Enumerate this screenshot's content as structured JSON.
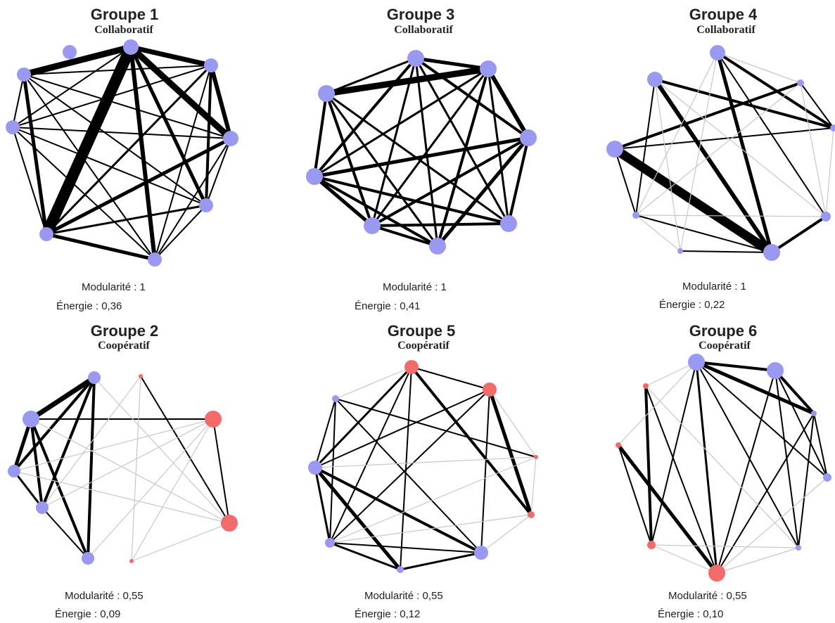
{
  "colors": {
    "blue_node": "#9999f2",
    "red_node": "#f26b6b",
    "edge": "#000000",
    "light_edge": "#c8c8c8"
  },
  "groups": [
    {
      "id": "g1",
      "title": "Groupe 1",
      "type": "Collaboratif",
      "modularity_label": "Modularité : 1",
      "energy_label": "Énergie : 0,36",
      "nodes": [
        {
          "c": "b",
          "r": 10
        },
        {
          "c": "b",
          "r": 11
        },
        {
          "c": "b",
          "r": 10
        },
        {
          "c": "b",
          "r": 11
        },
        {
          "c": "b",
          "r": 10
        },
        {
          "c": "b",
          "r": 10
        },
        {
          "c": "b",
          "r": 10
        },
        {
          "c": "b",
          "r": 10
        },
        {
          "c": "b",
          "r": 10
        }
      ],
      "edges": [
        [
          1,
          6,
          16
        ],
        [
          1,
          3,
          9
        ],
        [
          1,
          0,
          9
        ],
        [
          1,
          4,
          5
        ],
        [
          1,
          5,
          6
        ],
        [
          1,
          2,
          7
        ],
        [
          0,
          6,
          5
        ],
        [
          2,
          3,
          6
        ],
        [
          2,
          4,
          4
        ],
        [
          3,
          6,
          5
        ],
        [
          6,
          5,
          5
        ],
        [
          6,
          7,
          2
        ],
        [
          5,
          7,
          2
        ],
        [
          4,
          5,
          2
        ],
        [
          6,
          4,
          3
        ],
        [
          2,
          6,
          3
        ],
        [
          0,
          3,
          2
        ],
        [
          0,
          5,
          2
        ],
        [
          0,
          4,
          2
        ],
        [
          2,
          5,
          2
        ],
        [
          3,
          7,
          2
        ],
        [
          0,
          7,
          2
        ],
        [
          1,
          7,
          2
        ],
        [
          3,
          5,
          2
        ],
        [
          2,
          7,
          2
        ],
        [
          0,
          2,
          2
        ],
        [
          3,
          4,
          2
        ],
        [
          4,
          7,
          2
        ]
      ]
    },
    {
      "id": "g3",
      "title": "Groupe 3",
      "type": "Collaboratif",
      "modularity_label": "Modularité : 1",
      "energy_label": "Énergie : 0,41",
      "nodes": [
        {
          "c": "b",
          "r": 12
        },
        {
          "c": "b",
          "r": 12
        },
        {
          "c": "b",
          "r": 12
        },
        {
          "c": "b",
          "r": 12
        },
        {
          "c": "b",
          "r": 12
        },
        {
          "c": "b",
          "r": 12
        },
        {
          "c": "b",
          "r": 12
        },
        {
          "c": "b",
          "r": 12
        }
      ],
      "edges": [
        [
          1,
          7,
          9
        ],
        [
          1,
          2,
          6
        ],
        [
          0,
          1,
          5
        ],
        [
          2,
          5,
          4
        ],
        [
          2,
          6,
          5
        ],
        [
          5,
          6,
          5
        ],
        [
          2,
          4,
          5
        ],
        [
          1,
          4,
          4
        ],
        [
          0,
          2,
          4
        ],
        [
          3,
          5,
          4
        ],
        [
          4,
          5,
          4
        ],
        [
          4,
          6,
          4
        ],
        [
          3,
          6,
          4
        ],
        [
          2,
          3,
          4
        ],
        [
          0,
          6,
          4
        ],
        [
          5,
          7,
          4
        ],
        [
          6,
          7,
          4
        ],
        [
          0,
          7,
          3
        ],
        [
          1,
          6,
          3
        ],
        [
          0,
          3,
          3
        ],
        [
          1,
          3,
          3
        ],
        [
          3,
          7,
          3
        ],
        [
          0,
          5,
          3
        ],
        [
          4,
          7,
          3
        ],
        [
          0,
          4,
          3
        ],
        [
          1,
          5,
          3
        ]
      ]
    },
    {
      "id": "g4",
      "title": "Groupe 4",
      "type": "Collaboratif",
      "modularity_label": "Modularité : 1",
      "energy_label": "Énergie : 0,22",
      "nodes": [
        {
          "c": "b",
          "r": 11
        },
        {
          "c": "b",
          "r": 5
        },
        {
          "c": "b",
          "r": 5
        },
        {
          "c": "b",
          "r": 7
        },
        {
          "c": "b",
          "r": 12
        },
        {
          "c": "b",
          "r": 4
        },
        {
          "c": "b",
          "r": 5
        },
        {
          "c": "b",
          "r": 12
        },
        {
          "c": "b",
          "r": 11
        }
      ],
      "edges": [
        [
          7,
          4,
          13
        ],
        [
          8,
          4,
          6
        ],
        [
          0,
          4,
          5
        ],
        [
          4,
          7,
          3
        ],
        [
          7,
          1,
          4
        ],
        [
          0,
          2,
          4
        ],
        [
          8,
          2,
          4
        ],
        [
          4,
          3,
          4
        ],
        [
          4,
          5,
          2
        ],
        [
          4,
          6,
          2
        ],
        [
          0,
          1,
          1
        ],
        [
          0,
          3,
          2
        ],
        [
          7,
          2,
          2
        ],
        [
          1,
          3,
          1
        ],
        [
          1,
          2,
          2
        ],
        [
          2,
          3,
          1
        ],
        [
          1,
          6,
          1
        ],
        [
          0,
          6,
          1
        ],
        [
          0,
          5,
          1
        ],
        [
          8,
          6,
          2
        ],
        [
          8,
          5,
          1
        ],
        [
          8,
          3,
          1
        ],
        [
          7,
          6,
          2
        ],
        [
          5,
          6,
          1
        ],
        [
          3,
          6,
          1
        ]
      ]
    },
    {
      "id": "g2",
      "title": "Groupe 2",
      "type": "Coopératif",
      "modularity_label": "Modularité : 0,55",
      "energy_label": "Énergie : 0,09",
      "nodes": [
        {
          "c": "b",
          "r": 9
        },
        {
          "c": "r",
          "r": 3
        },
        {
          "c": "r",
          "r": 12
        },
        {
          "c": "r",
          "r": 12
        },
        {
          "c": "r",
          "r": 3
        },
        {
          "c": "b",
          "r": 9
        },
        {
          "c": "b",
          "r": 9
        },
        {
          "c": "b",
          "r": 9
        },
        {
          "c": "b",
          "r": 12
        }
      ],
      "edges": [
        [
          8,
          0,
          7
        ],
        [
          7,
          8,
          5
        ],
        [
          7,
          0,
          4
        ],
        [
          0,
          5,
          4
        ],
        [
          8,
          5,
          4
        ],
        [
          0,
          6,
          4
        ],
        [
          8,
          7,
          3
        ],
        [
          8,
          6,
          4
        ],
        [
          0,
          7,
          3
        ],
        [
          7,
          6,
          3
        ],
        [
          5,
          6,
          2
        ],
        [
          1,
          3,
          2
        ],
        [
          2,
          3,
          2
        ],
        [
          8,
          2,
          2
        ],
        [
          1,
          4,
          1
        ],
        [
          8,
          3,
          1
        ],
        [
          0,
          3,
          1
        ],
        [
          1,
          6,
          1
        ],
        [
          6,
          2,
          1
        ],
        [
          5,
          2,
          1
        ],
        [
          7,
          2,
          1
        ],
        [
          4,
          3,
          1
        ],
        [
          7,
          3,
          1
        ],
        [
          4,
          2,
          1
        ]
      ]
    },
    {
      "id": "g5",
      "title": "Groupe 5",
      "type": "Coopératif",
      "modularity_label": "Modularité : 0,55",
      "energy_label": "Énergie : 0,12",
      "nodes": [
        {
          "c": "r",
          "r": 10
        },
        {
          "c": "r",
          "r": 10
        },
        {
          "c": "r",
          "r": 3
        },
        {
          "c": "r",
          "r": 5
        },
        {
          "c": "b",
          "r": 10
        },
        {
          "c": "b",
          "r": 5
        },
        {
          "c": "b",
          "r": 7
        },
        {
          "c": "b",
          "r": 10
        },
        {
          "c": "b",
          "r": 5
        }
      ],
      "edges": [
        [
          0,
          3,
          4
        ],
        [
          1,
          3,
          5
        ],
        [
          7,
          4,
          4
        ],
        [
          7,
          5,
          5
        ],
        [
          5,
          6,
          3
        ],
        [
          7,
          6,
          3
        ],
        [
          0,
          1,
          2
        ],
        [
          0,
          7,
          3
        ],
        [
          0,
          5,
          2
        ],
        [
          0,
          6,
          2
        ],
        [
          1,
          7,
          2
        ],
        [
          1,
          4,
          2
        ],
        [
          1,
          6,
          2
        ],
        [
          4,
          8,
          2
        ],
        [
          4,
          5,
          3
        ],
        [
          4,
          6,
          2
        ],
        [
          8,
          2,
          2
        ],
        [
          8,
          6,
          2
        ],
        [
          8,
          7,
          2
        ],
        [
          0,
          8,
          1
        ],
        [
          2,
          3,
          1
        ],
        [
          2,
          7,
          1
        ],
        [
          6,
          2,
          1
        ],
        [
          1,
          2,
          1
        ],
        [
          3,
          4,
          1
        ],
        [
          6,
          3,
          1
        ]
      ]
    },
    {
      "id": "g6",
      "title": "Groupe 6",
      "type": "Coopératif",
      "modularity_label": "Modularité : 0,55",
      "energy_label": "Énergie : 0,10",
      "nodes": [
        {
          "c": "b",
          "r": 12
        },
        {
          "c": "b",
          "r": 12
        },
        {
          "c": "b",
          "r": 4
        },
        {
          "c": "b",
          "r": 6
        },
        {
          "c": "b",
          "r": 4
        },
        {
          "c": "r",
          "r": 12
        },
        {
          "c": "r",
          "r": 6
        },
        {
          "c": "r",
          "r": 4
        },
        {
          "c": "r",
          "r": 4
        }
      ],
      "edges": [
        [
          0,
          1,
          4
        ],
        [
          0,
          2,
          5
        ],
        [
          1,
          2,
          4
        ],
        [
          7,
          5,
          5
        ],
        [
          8,
          6,
          4
        ],
        [
          7,
          6,
          2
        ],
        [
          8,
          0,
          1
        ],
        [
          8,
          5,
          2
        ],
        [
          0,
          5,
          3
        ],
        [
          0,
          4,
          2
        ],
        [
          0,
          3,
          2
        ],
        [
          1,
          5,
          2
        ],
        [
          1,
          4,
          2
        ],
        [
          1,
          3,
          2
        ],
        [
          2,
          5,
          2
        ],
        [
          2,
          4,
          2
        ],
        [
          3,
          2,
          2
        ],
        [
          0,
          6,
          2
        ],
        [
          0,
          7,
          1
        ],
        [
          8,
          4,
          1
        ],
        [
          6,
          4,
          1
        ],
        [
          6,
          5,
          1
        ],
        [
          3,
          5,
          1
        ],
        [
          4,
          5,
          1
        ]
      ]
    }
  ]
}
